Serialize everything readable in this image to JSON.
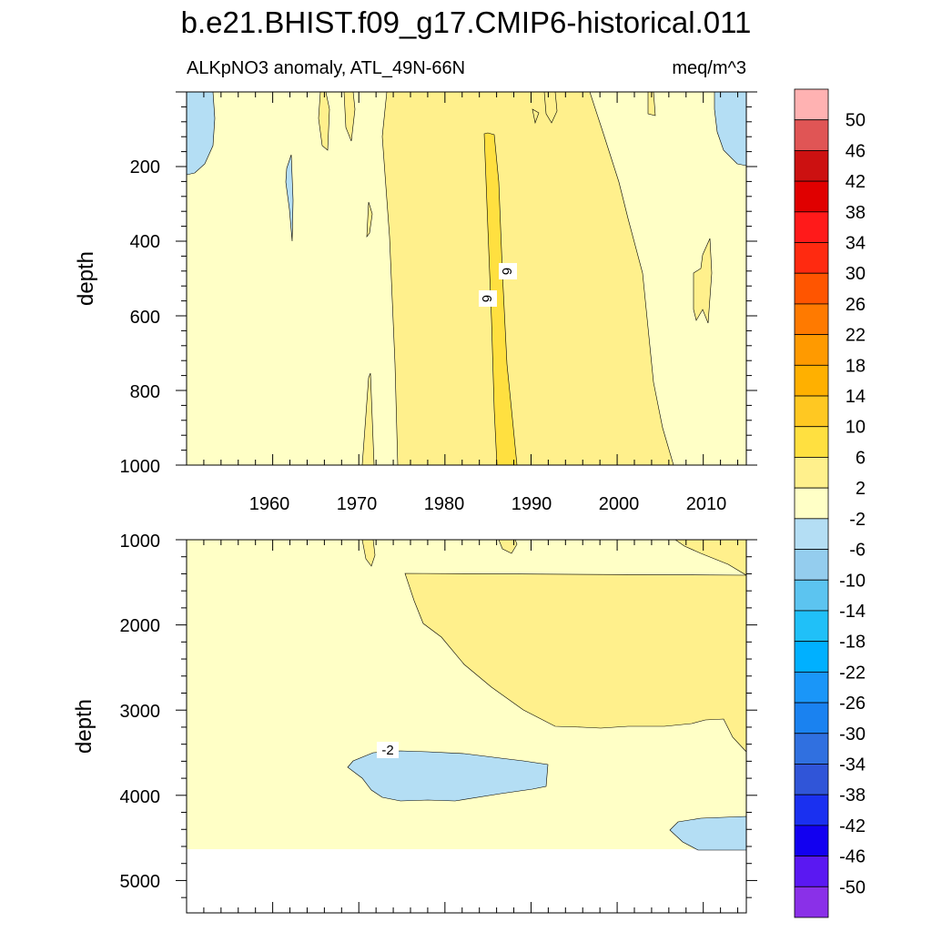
{
  "figure": {
    "title": "b.e21.BHIST.f09_g17.CMIP6-historical.011",
    "subtitle_left": "ALKpNO3 anomaly, ATL_49N-66N",
    "subtitle_right": "meq/m^3",
    "ylabel": "depth"
  },
  "chart_data": {
    "type": "heatmap",
    "variable": "ALKpNO3 anomaly",
    "region": "ATL_49N-66N",
    "units": "meq/m^3",
    "x_range": [
      1950,
      2015
    ],
    "x_ticks": [
      "1960",
      "1970",
      "1980",
      "1990",
      "2000",
      "2010"
    ],
    "top_panel": {
      "y_range": [
        0,
        1000
      ],
      "y_ticks": [
        "200",
        "400",
        "600",
        "800",
        "1000"
      ],
      "contour_labels": [
        "6",
        "6"
      ]
    },
    "bottom_panel": {
      "y_range": [
        1000,
        5400
      ],
      "y_ticks": [
        "1000",
        "2000",
        "3000",
        "4000",
        "5000"
      ],
      "no_data_below_depth": 4620,
      "contour_labels": [
        "-2"
      ]
    },
    "levels": [
      "50",
      "46",
      "42",
      "38",
      "34",
      "30",
      "26",
      "22",
      "18",
      "14",
      "10",
      "6",
      "2",
      "-2",
      "-6",
      "-10",
      "-14",
      "-18",
      "-22",
      "-26",
      "-30",
      "-34",
      "-38",
      "-42",
      "-46",
      "-50"
    ],
    "colors": [
      "#ffb2b2",
      "#e05555",
      "#cc1111",
      "#e00000",
      "#ff1a1a",
      "#ff2a10",
      "#ff5500",
      "#ff7a00",
      "#ff9a00",
      "#ffb000",
      "#ffc822",
      "#ffe040",
      "#fff08c",
      "#ffffc6",
      "#b4def4",
      "#94cdee",
      "#5cc4f0",
      "#20c0f8",
      "#00b0ff",
      "#1a96f8",
      "#1a82f0",
      "#3070e0",
      "#3055d8",
      "#1a30f0",
      "#1200f0",
      "#5a18f2",
      "#8a30e8"
    ]
  }
}
